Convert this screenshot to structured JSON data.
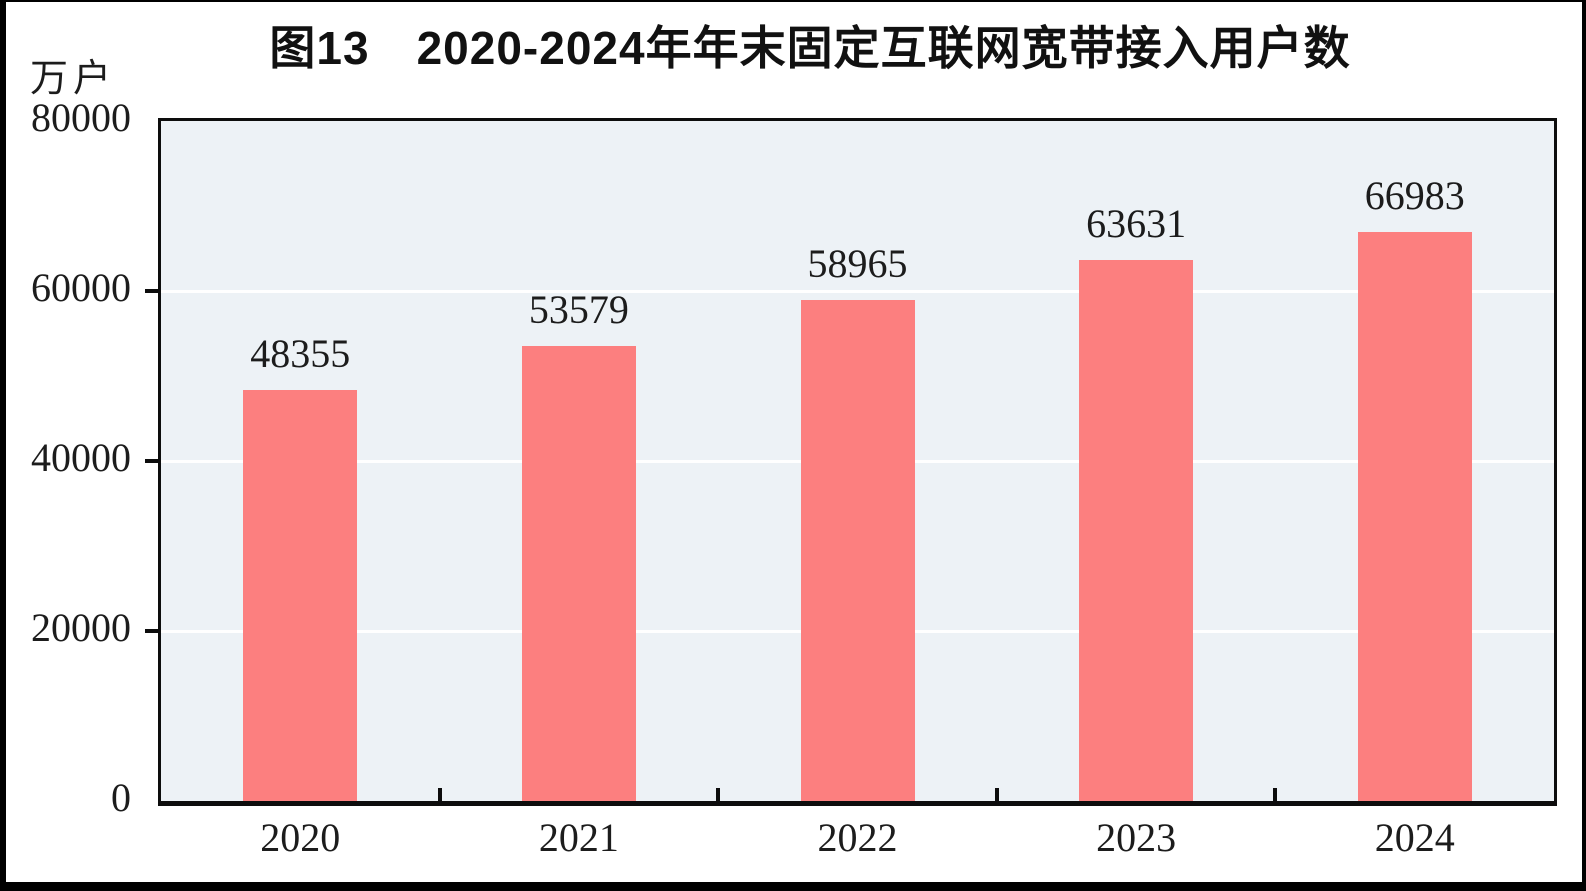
{
  "figure": {
    "title": "图13　2020-2024年年末固定互联网宽带接入用户数",
    "unit_label": "万户"
  },
  "chart_data": {
    "type": "bar",
    "title": "图13　2020-2024年年末固定互联网宽带接入用户数",
    "categories": [
      "2020",
      "2021",
      "2022",
      "2023",
      "2024"
    ],
    "values": [
      48355,
      53579,
      58965,
      63631,
      66983
    ],
    "data_labels": [
      "48355",
      "53579",
      "58965",
      "63631",
      "66983"
    ],
    "xlabel": "",
    "ylabel": "万户",
    "ylim": [
      0,
      80000
    ],
    "yticks": [
      0,
      20000,
      40000,
      60000,
      80000
    ],
    "ytick_labels": [
      "0",
      "20000",
      "40000",
      "60000",
      "80000"
    ],
    "grid": "horizontal white gridlines at major y ticks, behind bars",
    "legend": "none",
    "colors": {
      "bar_fill": "#FC7F7F",
      "plot_background": "#EDF2F6",
      "gridline": "#FFFFFF",
      "axis_and_frame": "#0D0D0D",
      "text": "#1C1C1C"
    }
  }
}
